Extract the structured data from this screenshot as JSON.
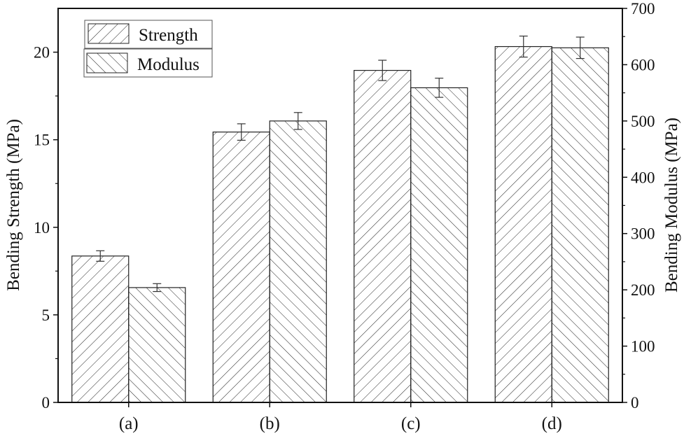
{
  "chart_data": {
    "type": "bar",
    "title": "",
    "xlabel": "",
    "ylabel": "Bending Strength (MPa)",
    "y2label": "Bending Modulus (MPa)",
    "categories": [
      "(a)",
      "(b)",
      "(c)",
      "(d)"
    ],
    "ylim": [
      0,
      22.5
    ],
    "y2lim": [
      0,
      700
    ],
    "yticks": [
      0,
      5,
      10,
      15,
      20
    ],
    "y2ticks": [
      0,
      100,
      200,
      300,
      400,
      500,
      600,
      700
    ],
    "series": [
      {
        "name": "Strength",
        "axis": "left",
        "hatch": "forward",
        "values": [
          8.36,
          15.44,
          18.96,
          20.32
        ],
        "errors": [
          0.3,
          0.47,
          0.58,
          0.6
        ]
      },
      {
        "name": "Modulus",
        "axis": "right",
        "hatch": "backward",
        "values": [
          204,
          500,
          559,
          630
        ],
        "errors": [
          7,
          15,
          17,
          19
        ]
      }
    ],
    "legend": "top-left",
    "grid": false
  }
}
